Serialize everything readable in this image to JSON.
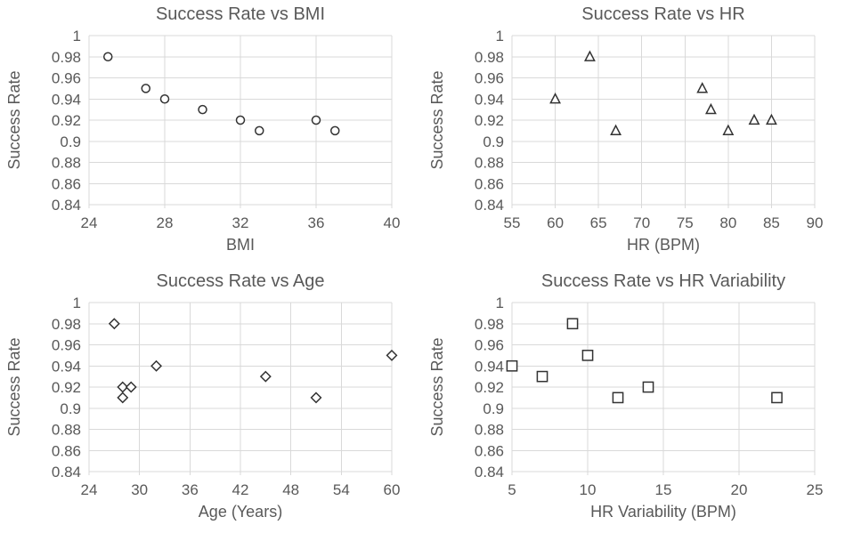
{
  "figure": {
    "background": "#ffffff",
    "grid_color": "#d9d9d9",
    "text_color": "#595959",
    "marker_color": "#333333"
  },
  "chart_data": [
    {
      "type": "scatter",
      "title": "Success Rate vs BMI",
      "xlabel": "BMI",
      "ylabel": "Success Rate",
      "marker": "circle",
      "grid": true,
      "legend": "none",
      "xlim": [
        24,
        40
      ],
      "ylim": [
        0.84,
        1
      ],
      "xticks": [
        {
          "value": 24,
          "label": "24"
        },
        {
          "value": 28,
          "label": "28"
        },
        {
          "value": 32,
          "label": "32"
        },
        {
          "value": 36,
          "label": "36"
        },
        {
          "value": 40,
          "label": "40"
        }
      ],
      "yticks": [
        {
          "value": 1,
          "label": "1"
        },
        {
          "value": 0.98,
          "label": "0.98"
        },
        {
          "value": 0.96,
          "label": "0.96"
        },
        {
          "value": 0.94,
          "label": "0.94"
        },
        {
          "value": 0.92,
          "label": "0.92"
        },
        {
          "value": 0.9,
          "label": "0.9"
        },
        {
          "value": 0.88,
          "label": "0.88"
        },
        {
          "value": 0.86,
          "label": "0.86"
        },
        {
          "value": 0.84,
          "label": "0.84"
        }
      ],
      "points": [
        [
          25,
          0.98
        ],
        [
          27,
          0.95
        ],
        [
          28,
          0.94
        ],
        [
          30,
          0.93
        ],
        [
          32,
          0.92
        ],
        [
          33,
          0.91
        ],
        [
          36,
          0.92
        ],
        [
          37,
          0.91
        ]
      ]
    },
    {
      "type": "scatter",
      "title": "Success Rate vs HR",
      "xlabel": "HR (BPM)",
      "ylabel": "Success Rate",
      "marker": "triangle",
      "grid": true,
      "legend": "none",
      "xlim": [
        55,
        90
      ],
      "ylim": [
        0.84,
        1
      ],
      "xticks": [
        {
          "value": 55,
          "label": "55"
        },
        {
          "value": 60,
          "label": "60"
        },
        {
          "value": 65,
          "label": "65"
        },
        {
          "value": 70,
          "label": "70"
        },
        {
          "value": 75,
          "label": "75"
        },
        {
          "value": 80,
          "label": "80"
        },
        {
          "value": 85,
          "label": "85"
        },
        {
          "value": 90,
          "label": "90"
        }
      ],
      "yticks": [
        {
          "value": 1,
          "label": "1"
        },
        {
          "value": 0.98,
          "label": "0.98"
        },
        {
          "value": 0.96,
          "label": "0.96"
        },
        {
          "value": 0.94,
          "label": "0.94"
        },
        {
          "value": 0.92,
          "label": "0.92"
        },
        {
          "value": 0.9,
          "label": "0.9"
        },
        {
          "value": 0.88,
          "label": "0.88"
        },
        {
          "value": 0.86,
          "label": "0.86"
        },
        {
          "value": 0.84,
          "label": "0.84"
        }
      ],
      "points": [
        [
          60,
          0.94
        ],
        [
          64,
          0.98
        ],
        [
          67,
          0.91
        ],
        [
          77,
          0.95
        ],
        [
          78,
          0.93
        ],
        [
          80,
          0.91
        ],
        [
          83,
          0.92
        ],
        [
          85,
          0.92
        ]
      ]
    },
    {
      "type": "scatter",
      "title": "Success Rate vs Age",
      "xlabel": "Age (Years)",
      "ylabel": "Success Rate",
      "marker": "diamond",
      "grid": true,
      "legend": "none",
      "xlim": [
        24,
        60
      ],
      "ylim": [
        0.84,
        1
      ],
      "xticks": [
        {
          "value": 24,
          "label": "24"
        },
        {
          "value": 30,
          "label": "30"
        },
        {
          "value": 36,
          "label": "36"
        },
        {
          "value": 42,
          "label": "42"
        },
        {
          "value": 48,
          "label": "48"
        },
        {
          "value": 54,
          "label": "54"
        },
        {
          "value": 60,
          "label": "60"
        }
      ],
      "yticks": [
        {
          "value": 1,
          "label": "1"
        },
        {
          "value": 0.98,
          "label": "0.98"
        },
        {
          "value": 0.96,
          "label": "0.96"
        },
        {
          "value": 0.94,
          "label": "0.94"
        },
        {
          "value": 0.92,
          "label": "0.92"
        },
        {
          "value": 0.9,
          "label": "0.9"
        },
        {
          "value": 0.88,
          "label": "0.88"
        },
        {
          "value": 0.86,
          "label": "0.86"
        },
        {
          "value": 0.84,
          "label": "0.84"
        }
      ],
      "points": [
        [
          27,
          0.98
        ],
        [
          28,
          0.92
        ],
        [
          29,
          0.92
        ],
        [
          28,
          0.91
        ],
        [
          32,
          0.94
        ],
        [
          45,
          0.93
        ],
        [
          51,
          0.91
        ],
        [
          60,
          0.95
        ]
      ]
    },
    {
      "type": "scatter",
      "title": "Success Rate vs HR Variability",
      "xlabel": "HR Variability (BPM)",
      "ylabel": "Success Rate",
      "marker": "square",
      "grid": true,
      "legend": "none",
      "xlim": [
        5,
        25
      ],
      "ylim": [
        0.84,
        1
      ],
      "xticks": [
        {
          "value": 5,
          "label": "5"
        },
        {
          "value": 10,
          "label": "10"
        },
        {
          "value": 15,
          "label": "15"
        },
        {
          "value": 20,
          "label": "20"
        },
        {
          "value": 25,
          "label": "25"
        }
      ],
      "yticks": [
        {
          "value": 1,
          "label": "1"
        },
        {
          "value": 0.98,
          "label": "0.98"
        },
        {
          "value": 0.96,
          "label": "0.96"
        },
        {
          "value": 0.94,
          "label": "0.94"
        },
        {
          "value": 0.92,
          "label": "0.92"
        },
        {
          "value": 0.9,
          "label": "0.9"
        },
        {
          "value": 0.88,
          "label": "0.88"
        },
        {
          "value": 0.86,
          "label": "0.86"
        },
        {
          "value": 0.84,
          "label": "0.84"
        }
      ],
      "points": [
        [
          5,
          0.94
        ],
        [
          7,
          0.93
        ],
        [
          9,
          0.98
        ],
        [
          10,
          0.95
        ],
        [
          12,
          0.91
        ],
        [
          14,
          0.92
        ],
        [
          22.5,
          0.91
        ]
      ]
    }
  ]
}
